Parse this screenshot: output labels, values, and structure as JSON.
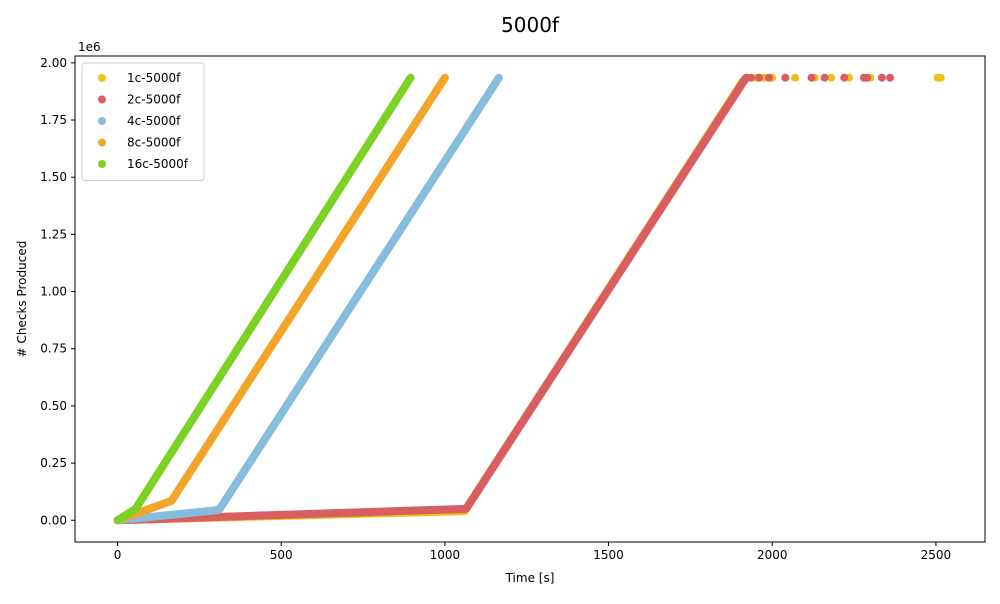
{
  "chart_data": {
    "type": "scatter",
    "title": "5000f",
    "xlabel": "Time [s]",
    "ylabel": "# Checks Produced",
    "y_offset_text": "1e6",
    "xlim": [
      -130,
      2650
    ],
    "ylim": [
      -0.095,
      2.03
    ],
    "y_scale_multiplier": 1000000,
    "x_ticks": [
      0,
      500,
      1000,
      1500,
      2000,
      2500
    ],
    "x_tick_labels": [
      "0",
      "500",
      "1000",
      "1500",
      "2000",
      "2500"
    ],
    "y_ticks": [
      0,
      0.25,
      0.5,
      0.75,
      1.0,
      1.25,
      1.5,
      1.75,
      2.0
    ],
    "y_tick_labels": [
      "0.00",
      "0.25",
      "0.50",
      "0.75",
      "1.00",
      "1.25",
      "1.50",
      "1.75",
      "2.00"
    ],
    "grid": false,
    "legend_position": "top-left",
    "series": [
      {
        "name": "1c-5000f",
        "color": "#ecc11b",
        "segments": [
          {
            "x": [
              0,
              1060,
              1910
            ],
            "y": [
              0,
              0.04,
              1.92
            ]
          }
        ],
        "points": [
          [
            1925,
            1.935
          ],
          [
            1950,
            1.935
          ],
          [
            1975,
            1.935
          ],
          [
            2000,
            1.935
          ],
          [
            2040,
            1.935
          ],
          [
            2070,
            1.935
          ],
          [
            2130,
            1.935
          ],
          [
            2180,
            1.935
          ],
          [
            2235,
            1.935
          ],
          [
            2300,
            1.935
          ],
          [
            2505,
            1.935
          ],
          [
            2510,
            1.935
          ],
          [
            2515,
            1.935
          ]
        ]
      },
      {
        "name": "2c-5000f",
        "color": "#d95e62",
        "segments": [
          {
            "x": [
              0,
              1065,
              1920
            ],
            "y": [
              0,
              0.05,
              1.935
            ]
          }
        ],
        "points": [
          [
            1935,
            1.935
          ],
          [
            1960,
            1.935
          ],
          [
            1990,
            1.935
          ],
          [
            2040,
            1.935
          ],
          [
            2120,
            1.935
          ],
          [
            2160,
            1.935
          ],
          [
            2220,
            1.935
          ],
          [
            2280,
            1.935
          ],
          [
            2290,
            1.935
          ],
          [
            2335,
            1.935
          ],
          [
            2360,
            1.935
          ]
        ]
      },
      {
        "name": "4c-5000f",
        "color": "#86bcdc",
        "segments": [
          {
            "x": [
              0,
              310,
              1165
            ],
            "y": [
              0,
              0.045,
              1.935
            ]
          }
        ],
        "points": []
      },
      {
        "name": "8c-5000f",
        "color": "#f5a42a",
        "segments": [
          {
            "x": [
              0,
              165,
              1000
            ],
            "y": [
              0,
              0.085,
              1.935
            ]
          }
        ],
        "points": []
      },
      {
        "name": "16c-5000f",
        "color": "#7cd125",
        "segments": [
          {
            "x": [
              0,
              55,
              895
            ],
            "y": [
              0,
              0.05,
              1.935
            ]
          }
        ],
        "points": []
      }
    ]
  }
}
